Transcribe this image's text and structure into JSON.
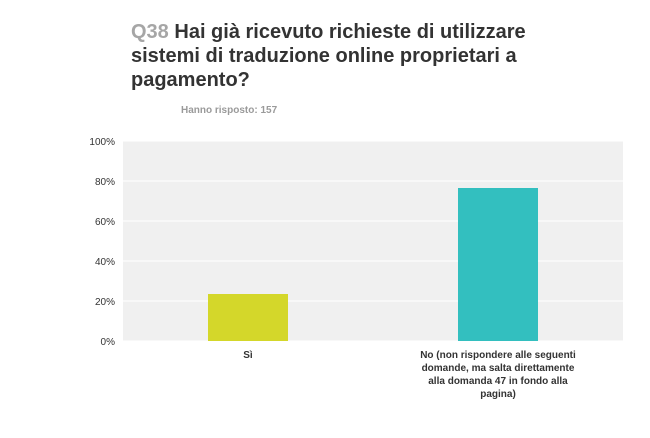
{
  "header": {
    "question_number": "Q38",
    "question_text": "Hai già ricevuto richieste di utilizzare sistemi di traduzione online proprietari a pagamento?",
    "respondents": "Hanno risposto: 157"
  },
  "chart_data": {
    "type": "bar",
    "categories": [
      "Sì",
      "No (non rispondere alle seguenti domande, ma salta direttamente alla domanda 47 in fondo alla pagina)"
    ],
    "values": [
      23.5,
      76.5
    ],
    "colors": [
      "#d4d72a",
      "#33bfbf"
    ],
    "ylim": [
      0,
      100
    ],
    "yticks": [
      "0%",
      "20%",
      "40%",
      "60%",
      "80%",
      "100%"
    ],
    "grid": true,
    "plot_background": "#f0f0f0"
  }
}
